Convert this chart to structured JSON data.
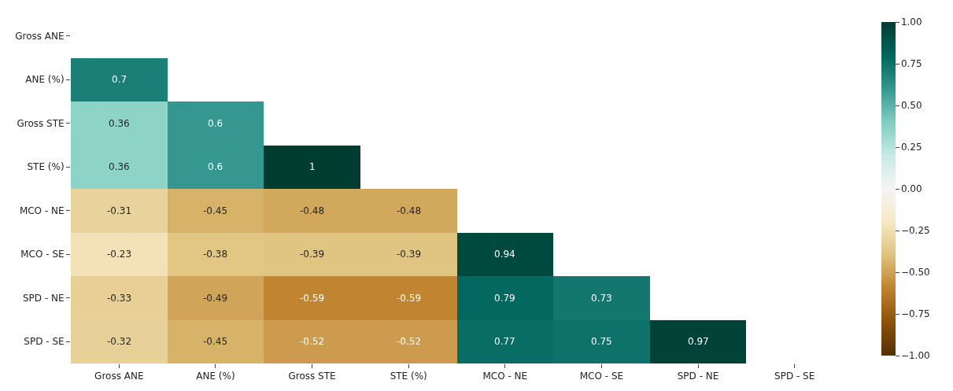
{
  "chart_data": {
    "type": "heatmap",
    "categories": [
      "Gross ANE",
      "ANE (%)",
      "Gross STE",
      "STE (%)",
      "MCO - NE",
      "MCO - SE",
      "SPD - NE",
      "SPD - SE"
    ],
    "y_categories": [
      "Gross ANE",
      "ANE (%)",
      "Gross STE",
      "STE (%)",
      "MCO - NE",
      "MCO - SE",
      "SPD - NE",
      "SPD - SE"
    ],
    "cells": [
      [
        null,
        null,
        null,
        null,
        null,
        null,
        null,
        null
      ],
      [
        0.7,
        null,
        null,
        null,
        null,
        null,
        null,
        null
      ],
      [
        0.36,
        0.6,
        null,
        null,
        null,
        null,
        null,
        null
      ],
      [
        0.36,
        0.6,
        1,
        null,
        null,
        null,
        null,
        null
      ],
      [
        -0.31,
        -0.45,
        -0.48,
        -0.48,
        null,
        null,
        null,
        null
      ],
      [
        -0.23,
        -0.38,
        -0.39,
        -0.39,
        0.94,
        null,
        null,
        null
      ],
      [
        -0.33,
        -0.49,
        -0.59,
        -0.59,
        0.79,
        0.73,
        null,
        null
      ],
      [
        -0.32,
        -0.45,
        -0.52,
        -0.52,
        0.77,
        0.75,
        0.97,
        null
      ]
    ],
    "clim": [
      -1,
      1
    ],
    "cticks": [
      {
        "value": -1,
        "label": "−1.00"
      },
      {
        "value": -0.75,
        "label": "−0.75"
      },
      {
        "value": -0.5,
        "label": "−0.50"
      },
      {
        "value": -0.25,
        "label": "−0.25"
      },
      {
        "value": 0,
        "label": "0.00"
      },
      {
        "value": 0.25,
        "label": "0.25"
      },
      {
        "value": 0.5,
        "label": "0.50"
      },
      {
        "value": 0.75,
        "label": "0.75"
      },
      {
        "value": 1,
        "label": "1.00"
      }
    ],
    "data_labels": true
  }
}
